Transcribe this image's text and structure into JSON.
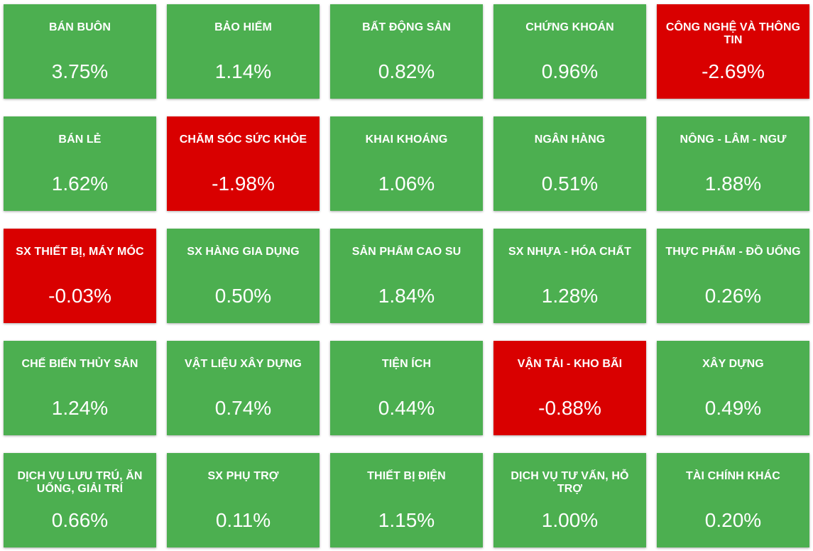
{
  "colors": {
    "positive": "#4caf50",
    "negative": "#d90000",
    "text": "#ffffff"
  },
  "chart_data": {
    "type": "heatmap",
    "columns": 5,
    "unit": "%",
    "cells": [
      {
        "label": "BÁN BUÔN",
        "value": 3.75,
        "display": "3.75%"
      },
      {
        "label": "BẢO HIỂM",
        "value": 1.14,
        "display": "1.14%"
      },
      {
        "label": "BẤT ĐỘNG SẢN",
        "value": 0.82,
        "display": "0.82%"
      },
      {
        "label": "CHỨNG KHOÁN",
        "value": 0.96,
        "display": "0.96%"
      },
      {
        "label": "CÔNG NGHỆ VÀ THÔNG TIN",
        "value": -2.69,
        "display": "-2.69%"
      },
      {
        "label": "BÁN LẺ",
        "value": 1.62,
        "display": "1.62%"
      },
      {
        "label": "CHĂM SÓC SỨC KHỎE",
        "value": -1.98,
        "display": "-1.98%"
      },
      {
        "label": "KHAI KHOÁNG",
        "value": 1.06,
        "display": "1.06%"
      },
      {
        "label": "NGÂN HÀNG",
        "value": 0.51,
        "display": "0.51%"
      },
      {
        "label": "NÔNG - LÂM - NGƯ",
        "value": 1.88,
        "display": "1.88%"
      },
      {
        "label": "SX THIẾT BỊ, MÁY MÓC",
        "value": -0.03,
        "display": "-0.03%"
      },
      {
        "label": "SX HÀNG GIA DỤNG",
        "value": 0.5,
        "display": "0.50%"
      },
      {
        "label": "SẢN PHẨM CAO SU",
        "value": 1.84,
        "display": "1.84%"
      },
      {
        "label": "SX NHỰA - HÓA CHẤT",
        "value": 1.28,
        "display": "1.28%"
      },
      {
        "label": "THỰC PHẨM - ĐỒ UỐNG",
        "value": 0.26,
        "display": "0.26%"
      },
      {
        "label": "CHẾ BIẾN THỦY SẢN",
        "value": 1.24,
        "display": "1.24%"
      },
      {
        "label": "VẬT LIỆU XÂY DỰNG",
        "value": 0.74,
        "display": "0.74%"
      },
      {
        "label": "TIỆN ÍCH",
        "value": 0.44,
        "display": "0.44%"
      },
      {
        "label": "VẬN TẢI - KHO BÃI",
        "value": -0.88,
        "display": "-0.88%"
      },
      {
        "label": "XÂY DỰNG",
        "value": 0.49,
        "display": "0.49%"
      },
      {
        "label": "DỊCH VỤ LƯU TRÚ, ĂN UỐNG, GIẢI TRÍ",
        "value": 0.66,
        "display": "0.66%"
      },
      {
        "label": "SX PHỤ TRỢ",
        "value": 0.11,
        "display": "0.11%"
      },
      {
        "label": "THIẾT BỊ ĐIỆN",
        "value": 1.15,
        "display": "1.15%"
      },
      {
        "label": "DỊCH VỤ TƯ VẤN, HỖ TRỢ",
        "value": 1.0,
        "display": "1.00%"
      },
      {
        "label": "TÀI CHÍNH KHÁC",
        "value": 0.2,
        "display": "0.20%"
      }
    ]
  }
}
